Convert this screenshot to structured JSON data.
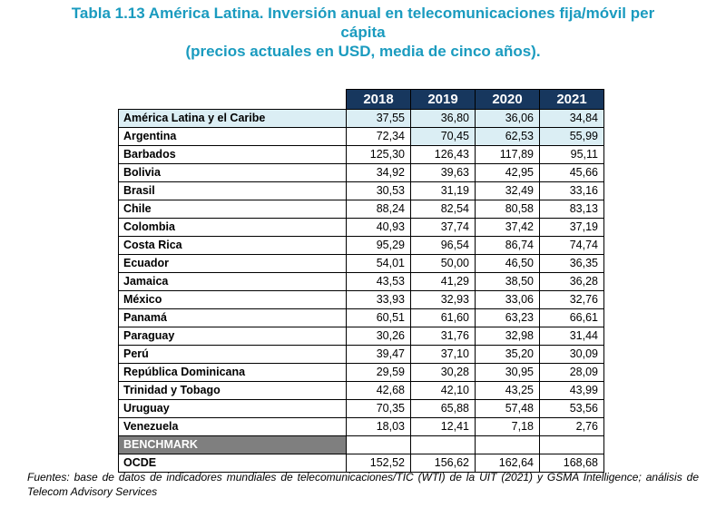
{
  "title": {
    "line1": "Tabla 1.13 América Latina. Inversión anual en telecomunicaciones fija/móvil per",
    "line2": "cápita",
    "line3": "(precios actuales en USD, media de cinco años)."
  },
  "table": {
    "years": [
      "2018",
      "2019",
      "2020",
      "2021"
    ],
    "rows": [
      {
        "name": "América Latina y el Caribe",
        "values": [
          "37,55",
          "36,80",
          "36,06",
          "34,84"
        ]
      },
      {
        "name": "Argentina",
        "values": [
          "72,34",
          "70,45",
          "62,53",
          "55,99"
        ]
      },
      {
        "name": "Barbados",
        "values": [
          "125,30",
          "126,43",
          "117,89",
          "95,11"
        ]
      },
      {
        "name": "Bolivia",
        "values": [
          "34,92",
          "39,63",
          "42,95",
          "45,66"
        ]
      },
      {
        "name": "Brasil",
        "values": [
          "30,53",
          "31,19",
          "32,49",
          "33,16"
        ]
      },
      {
        "name": "Chile",
        "values": [
          "88,24",
          "82,54",
          "80,58",
          "83,13"
        ]
      },
      {
        "name": "Colombia",
        "values": [
          "40,93",
          "37,74",
          "37,42",
          "37,19"
        ]
      },
      {
        "name": "Costa Rica",
        "values": [
          "95,29",
          "96,54",
          "86,74",
          "74,74"
        ]
      },
      {
        "name": "Ecuador",
        "values": [
          "54,01",
          "50,00",
          "46,50",
          "36,35"
        ]
      },
      {
        "name": "Jamaica",
        "values": [
          "43,53",
          "41,29",
          "38,50",
          "36,28"
        ]
      },
      {
        "name": "México",
        "values": [
          "33,93",
          "32,93",
          "33,06",
          "32,76"
        ]
      },
      {
        "name": "Panamá",
        "values": [
          "60,51",
          "61,60",
          "63,23",
          "66,61"
        ]
      },
      {
        "name": "Paraguay",
        "values": [
          "30,26",
          "31,76",
          "32,98",
          "31,44"
        ]
      },
      {
        "name": "Perú",
        "values": [
          "39,47",
          "37,10",
          "35,20",
          "30,09"
        ]
      },
      {
        "name": "República Dominicana",
        "values": [
          "29,59",
          "30,28",
          "30,95",
          "28,09"
        ]
      },
      {
        "name": "Trinidad y Tobago",
        "values": [
          "42,68",
          "42,10",
          "43,25",
          "43,99"
        ]
      },
      {
        "name": "Uruguay",
        "values": [
          "70,35",
          "65,88",
          "57,48",
          "53,56"
        ]
      },
      {
        "name": "Venezuela",
        "values": [
          "18,03",
          "12,41",
          "7,18",
          "2,76"
        ]
      }
    ],
    "benchmark_label": "BENCHMARK",
    "ocde": {
      "name": "OCDE",
      "values": [
        "152,52",
        "156,62",
        "162,64",
        "168,68"
      ]
    },
    "colors": {
      "header_bg": "#17375e",
      "highlight_bg": "#dbeef4",
      "benchmark_bg": "#7f7f7f",
      "title": "#1a9bbf"
    }
  },
  "footer": {
    "line1": "Fuentes: base de datos de indicadores mundiales de telecomunicaciones/TIC (WTI) de la UIT (2021) y GSMA",
    "line2": "Intelligence; análisis de Telecom Advisory Services"
  }
}
